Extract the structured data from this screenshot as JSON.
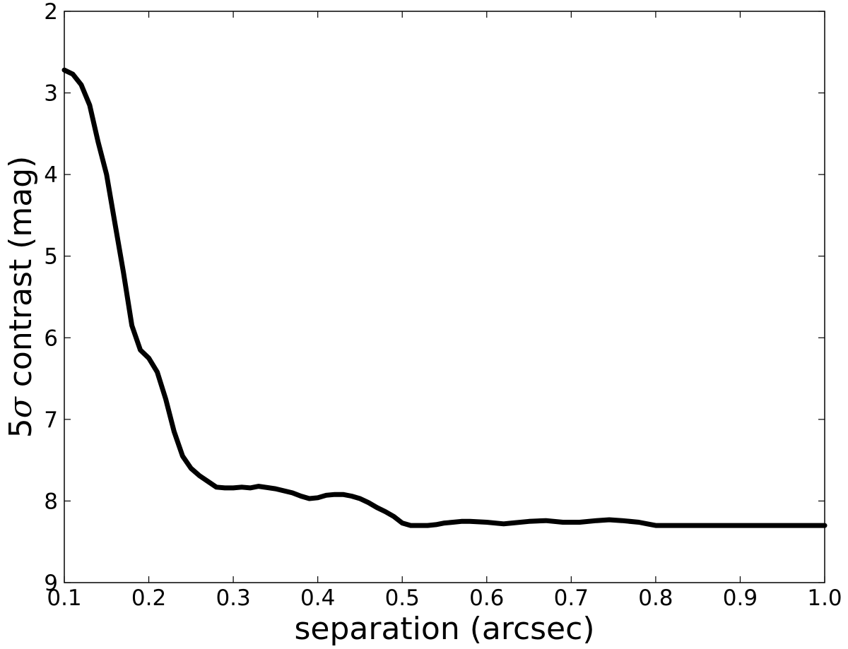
{
  "chart_data": {
    "type": "line",
    "title": "",
    "xlabel": "separation (arcsec)",
    "ylabel_prefix": "5",
    "ylabel_symbol": "σ",
    "ylabel_suffix": " contrast (mag)",
    "xlim": [
      0.1,
      1.0
    ],
    "ylim": [
      9,
      2
    ],
    "y_inverted": true,
    "grid": false,
    "legend": "none",
    "line_color": "#000000",
    "x_ticks": [
      {
        "value": 0.1,
        "label": "0.1"
      },
      {
        "value": 0.2,
        "label": "0.2"
      },
      {
        "value": 0.3,
        "label": "0.3"
      },
      {
        "value": 0.4,
        "label": "0.4"
      },
      {
        "value": 0.5,
        "label": "0.5"
      },
      {
        "value": 0.6,
        "label": "0.6"
      },
      {
        "value": 0.7,
        "label": "0.7"
      },
      {
        "value": 0.8,
        "label": "0.8"
      },
      {
        "value": 0.9,
        "label": "0.9"
      },
      {
        "value": 1.0,
        "label": "1.0"
      }
    ],
    "y_ticks": [
      {
        "value": 2,
        "label": "2"
      },
      {
        "value": 3,
        "label": "3"
      },
      {
        "value": 4,
        "label": "4"
      },
      {
        "value": 5,
        "label": "5"
      },
      {
        "value": 6,
        "label": "6"
      },
      {
        "value": 7,
        "label": "7"
      },
      {
        "value": 8,
        "label": "8"
      },
      {
        "value": 9,
        "label": "9"
      }
    ],
    "series": [
      {
        "x": [
          0.1,
          0.11,
          0.12,
          0.13,
          0.14,
          0.15,
          0.16,
          0.17,
          0.18,
          0.19,
          0.2,
          0.21,
          0.22,
          0.23,
          0.24,
          0.25,
          0.26,
          0.27,
          0.28,
          0.29,
          0.3,
          0.31,
          0.32,
          0.33,
          0.35,
          0.37,
          0.38,
          0.39,
          0.4,
          0.41,
          0.42,
          0.43,
          0.44,
          0.45,
          0.46,
          0.47,
          0.48,
          0.49,
          0.5,
          0.51,
          0.52,
          0.53,
          0.54,
          0.55,
          0.56,
          0.57,
          0.58,
          0.6,
          0.62,
          0.63,
          0.65,
          0.67,
          0.69,
          0.71,
          0.73,
          0.745,
          0.76,
          0.78,
          0.79,
          0.8,
          0.82,
          0.85,
          0.88,
          0.9,
          0.95,
          1.0
        ],
        "y": [
          2.72,
          2.77,
          2.9,
          3.15,
          3.6,
          4.0,
          4.6,
          5.2,
          5.85,
          6.15,
          6.25,
          6.42,
          6.75,
          7.15,
          7.45,
          7.6,
          7.69,
          7.76,
          7.83,
          7.84,
          7.84,
          7.83,
          7.84,
          7.82,
          7.85,
          7.9,
          7.94,
          7.97,
          7.96,
          7.93,
          7.92,
          7.92,
          7.94,
          7.97,
          8.02,
          8.08,
          8.13,
          8.19,
          8.27,
          8.3,
          8.3,
          8.3,
          8.29,
          8.27,
          8.26,
          8.25,
          8.25,
          8.26,
          8.28,
          8.27,
          8.25,
          8.24,
          8.26,
          8.26,
          8.24,
          8.23,
          8.24,
          8.26,
          8.28,
          8.3,
          8.3,
          8.3,
          8.3,
          8.3,
          8.3,
          8.3
        ]
      }
    ]
  }
}
